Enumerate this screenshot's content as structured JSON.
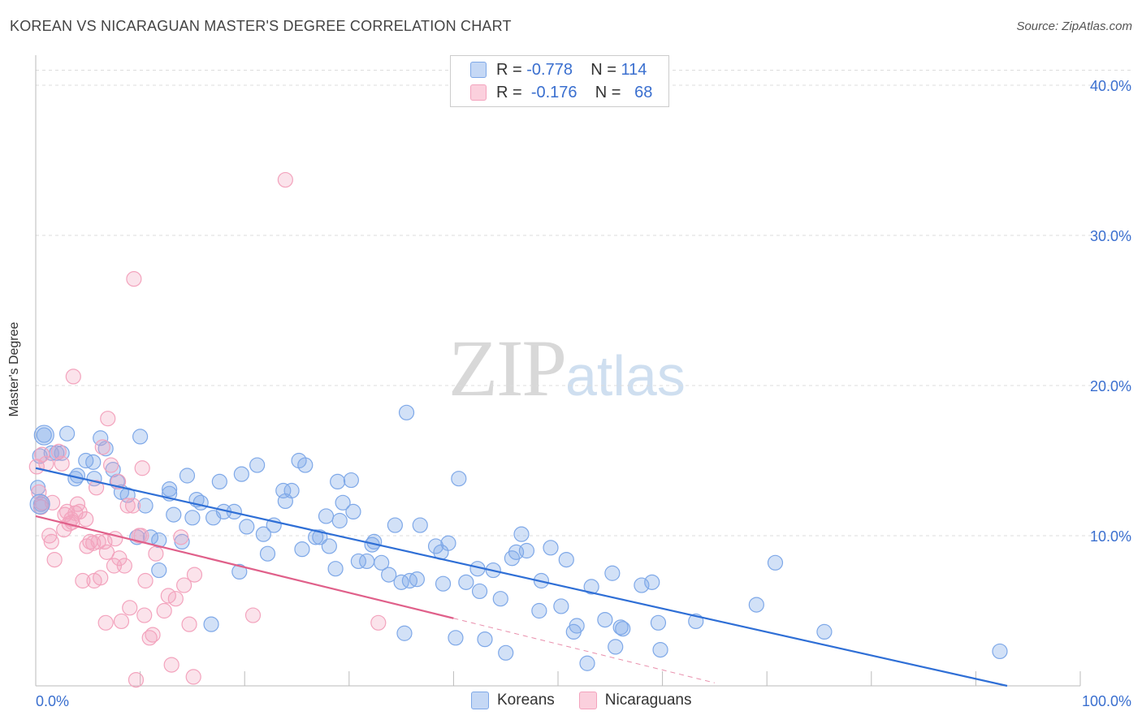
{
  "title": "KOREAN VS NICARAGUAN MASTER'S DEGREE CORRELATION CHART",
  "source": "Source: ZipAtlas.com",
  "watermark": {
    "zip": "ZIP",
    "atlas": "atlas"
  },
  "legend": {
    "rows": [
      {
        "r_label": "R =",
        "r_value": "-0.778",
        "n_label": "N =",
        "n_value": "114"
      },
      {
        "r_label": "R =",
        "r_value": "-0.176",
        "n_label": "N =",
        "n_value": "68"
      }
    ]
  },
  "colors": {
    "korean": "#7ea8e8",
    "korean_line": "#2f6fd6",
    "nicaraguan": "#f3a3bd",
    "nicaraguan_line": "#e0608a",
    "axis_label": "#3a6fcf"
  },
  "chart_data": {
    "type": "scatter",
    "title": "KOREAN VS NICARAGUAN MASTER'S DEGREE CORRELATION CHART",
    "ylabel": "Master's Degree",
    "xlabel": "",
    "xlim": [
      0,
      100
    ],
    "ylim": [
      0,
      42
    ],
    "x_tick_labels": [
      "0.0%",
      "100.0%"
    ],
    "y_ticks": [
      10,
      20,
      30,
      40
    ],
    "y_tick_labels": [
      "10.0%",
      "20.0%",
      "30.0%",
      "40.0%"
    ],
    "grid": true,
    "legend_position": "top-center",
    "series": [
      {
        "name": "Koreans",
        "r": -0.778,
        "n": 114,
        "trend": {
          "x": [
            0,
            93
          ],
          "y": [
            14.5,
            0
          ]
        },
        "points": [
          [
            0.5,
            12.1
          ],
          [
            0.8,
            16.7
          ],
          [
            1.5,
            15.5
          ],
          [
            2,
            15.5
          ],
          [
            2.5,
            15.5
          ],
          [
            3,
            16.8
          ],
          [
            4,
            14
          ],
          [
            3.8,
            13.8
          ],
          [
            4.8,
            15
          ],
          [
            5.5,
            14.9
          ],
          [
            5.6,
            13.8
          ],
          [
            6.2,
            16.5
          ],
          [
            6.7,
            15.8
          ],
          [
            7.4,
            14.4
          ],
          [
            7.8,
            13.6
          ],
          [
            8.2,
            12.9
          ],
          [
            8.8,
            12.7
          ],
          [
            9.7,
            9.9
          ],
          [
            10,
            16.6
          ],
          [
            10.5,
            12
          ],
          [
            11,
            9.9
          ],
          [
            11.8,
            9.7
          ],
          [
            12.8,
            13.1
          ],
          [
            11.8,
            7.7
          ],
          [
            12.8,
            12.8
          ],
          [
            13.2,
            11.4
          ],
          [
            14,
            9.6
          ],
          [
            14.5,
            14
          ],
          [
            15,
            11.2
          ],
          [
            15.4,
            12.4
          ],
          [
            15.8,
            12.2
          ],
          [
            16.8,
            4.1
          ],
          [
            17,
            11.2
          ],
          [
            17.6,
            13.6
          ],
          [
            18,
            11.6
          ],
          [
            19,
            11.6
          ],
          [
            19.5,
            7.6
          ],
          [
            19.7,
            14.1
          ],
          [
            20.2,
            10.6
          ],
          [
            21.2,
            14.7
          ],
          [
            21.8,
            10.1
          ],
          [
            22.2,
            8.8
          ],
          [
            22.8,
            10.7
          ],
          [
            23.7,
            13
          ],
          [
            23.9,
            12.3
          ],
          [
            24.5,
            13
          ],
          [
            25.2,
            15
          ],
          [
            25.5,
            9.1
          ],
          [
            25.8,
            14.7
          ],
          [
            26.8,
            9.9
          ],
          [
            27.2,
            9.9
          ],
          [
            27.8,
            11.3
          ],
          [
            28.1,
            9.3
          ],
          [
            28.7,
            7.8
          ],
          [
            28.9,
            13.6
          ],
          [
            29.1,
            11
          ],
          [
            29.4,
            12.2
          ],
          [
            30.2,
            13.7
          ],
          [
            30.4,
            11.6
          ],
          [
            30.9,
            8.3
          ],
          [
            31.7,
            8.3
          ],
          [
            32.2,
            9.4
          ],
          [
            32.4,
            9.6
          ],
          [
            33.1,
            8.2
          ],
          [
            33.8,
            7.4
          ],
          [
            34.4,
            10.7
          ],
          [
            35,
            6.9
          ],
          [
            35.3,
            3.5
          ],
          [
            35.5,
            18.2
          ],
          [
            35.8,
            7
          ],
          [
            36.5,
            7.1
          ],
          [
            36.8,
            10.7
          ],
          [
            38.3,
            9.3
          ],
          [
            38.8,
            8.9
          ],
          [
            39,
            6.8
          ],
          [
            39.5,
            9.5
          ],
          [
            40.2,
            3.2
          ],
          [
            40.5,
            13.8
          ],
          [
            41.2,
            6.9
          ],
          [
            42.3,
            7.8
          ],
          [
            42.5,
            6.3
          ],
          [
            43,
            3.1
          ],
          [
            43.8,
            7.7
          ],
          [
            44.5,
            5.8
          ],
          [
            45,
            2.2
          ],
          [
            45.6,
            8.5
          ],
          [
            46,
            8.9
          ],
          [
            46.5,
            10.1
          ],
          [
            47,
            9
          ],
          [
            48.2,
            5
          ],
          [
            48.4,
            7
          ],
          [
            49.3,
            9.2
          ],
          [
            50.3,
            5.3
          ],
          [
            50.8,
            8.4
          ],
          [
            51.5,
            3.6
          ],
          [
            51.8,
            4
          ],
          [
            52.8,
            1.5
          ],
          [
            53.2,
            6.6
          ],
          [
            54.5,
            4.4
          ],
          [
            55.2,
            7.5
          ],
          [
            55.5,
            2.6
          ],
          [
            56,
            3.9
          ],
          [
            56.2,
            3.8
          ],
          [
            58,
            6.7
          ],
          [
            59,
            6.9
          ],
          [
            59.6,
            4.2
          ],
          [
            59.8,
            2.4
          ],
          [
            63.2,
            4.3
          ],
          [
            69,
            5.4
          ],
          [
            70.8,
            8.2
          ],
          [
            75.5,
            3.6
          ],
          [
            92.3,
            2.3
          ],
          [
            0.4,
            15.3
          ],
          [
            0.2,
            13.2
          ]
        ]
      },
      {
        "name": "Nicaraguans",
        "r": -0.176,
        "n": 68,
        "trend": {
          "x": [
            0,
            40
          ],
          "y": [
            11.3,
            4.5
          ]
        },
        "trend_dashed": {
          "x": [
            40,
            65
          ],
          "y": [
            4.5,
            0.2
          ]
        },
        "points": [
          [
            0.1,
            14.6
          ],
          [
            0.3,
            12.9
          ],
          [
            0.5,
            11.9
          ],
          [
            0.6,
            12.2
          ],
          [
            0.6,
            15.4
          ],
          [
            1,
            14.8
          ],
          [
            1.3,
            10
          ],
          [
            1.5,
            9.6
          ],
          [
            1.8,
            8.4
          ],
          [
            1.6,
            12.2
          ],
          [
            2.2,
            15.6
          ],
          [
            2.5,
            14.8
          ],
          [
            2.7,
            10.4
          ],
          [
            2.8,
            11.4
          ],
          [
            3,
            11.6
          ],
          [
            3.2,
            10.8
          ],
          [
            3.4,
            11.1
          ],
          [
            3.5,
            10.9
          ],
          [
            3.6,
            20.6
          ],
          [
            3.8,
            11.5
          ],
          [
            4,
            12.1
          ],
          [
            4.2,
            11.6
          ],
          [
            4.5,
            7
          ],
          [
            4.8,
            11.1
          ],
          [
            4.9,
            9.3
          ],
          [
            5.2,
            9.6
          ],
          [
            5.5,
            9.5
          ],
          [
            5.6,
            7
          ],
          [
            5.8,
            13.2
          ],
          [
            6,
            9.6
          ],
          [
            6.2,
            7.2
          ],
          [
            6.4,
            15.9
          ],
          [
            6.6,
            9.6
          ],
          [
            6.7,
            4.2
          ],
          [
            6.8,
            8.9
          ],
          [
            6.9,
            17.8
          ],
          [
            7.2,
            14.7
          ],
          [
            7.5,
            8
          ],
          [
            7.6,
            9.8
          ],
          [
            7.9,
            13.6
          ],
          [
            8,
            8.5
          ],
          [
            8.2,
            4.3
          ],
          [
            8.5,
            8
          ],
          [
            8.8,
            12
          ],
          [
            9,
            5.2
          ],
          [
            9.3,
            12
          ],
          [
            9.4,
            27.1
          ],
          [
            9.6,
            0.4
          ],
          [
            9.9,
            10
          ],
          [
            10.1,
            10
          ],
          [
            10.2,
            14.5
          ],
          [
            10.4,
            4.7
          ],
          [
            10.5,
            7
          ],
          [
            10.9,
            3.2
          ],
          [
            11.2,
            3.4
          ],
          [
            11.5,
            8.8
          ],
          [
            12.3,
            5
          ],
          [
            12.7,
            6
          ],
          [
            13,
            1.4
          ],
          [
            13.4,
            5.8
          ],
          [
            13.9,
            9.9
          ],
          [
            14.2,
            6.7
          ],
          [
            14.7,
            4.1
          ],
          [
            15.1,
            0.6
          ],
          [
            15.2,
            7.4
          ],
          [
            20.8,
            4.7
          ],
          [
            23.9,
            33.7
          ],
          [
            32.8,
            4.2
          ]
        ]
      }
    ]
  },
  "bottom_legend": [
    {
      "label": "Koreans"
    },
    {
      "label": "Nicaraguans"
    }
  ]
}
